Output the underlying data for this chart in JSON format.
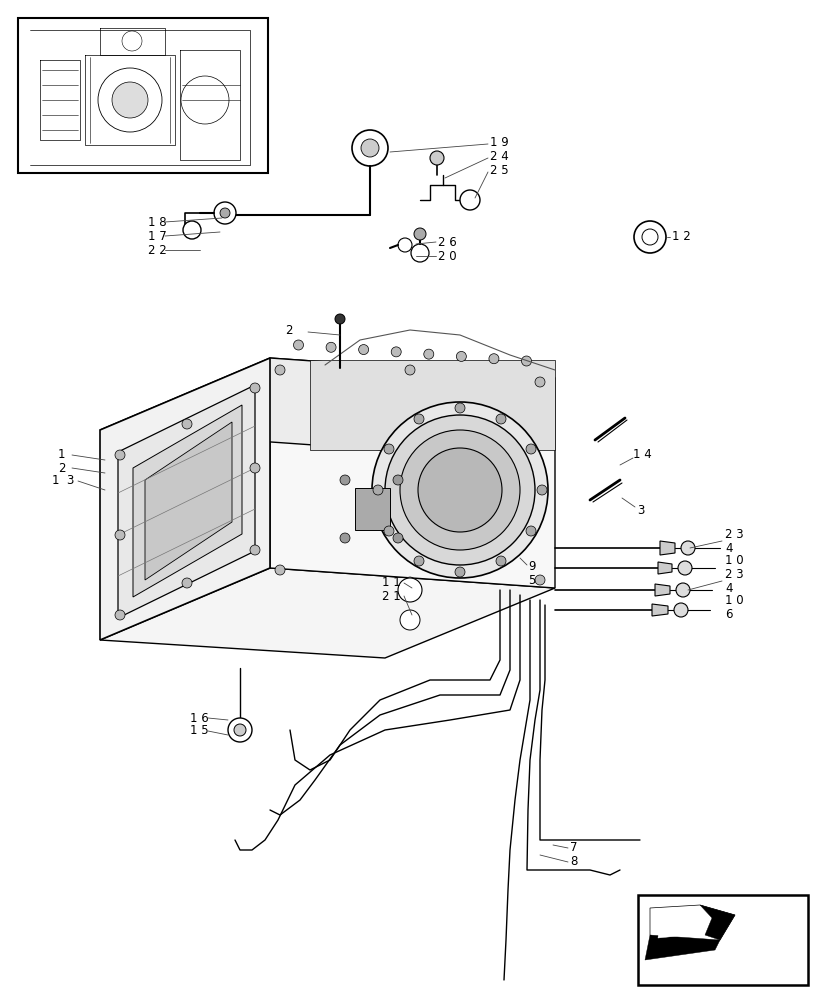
{
  "bg_color": "#ffffff",
  "lc": "#000000",
  "fig_width": 8.28,
  "fig_height": 10.0,
  "dpi": 100
}
